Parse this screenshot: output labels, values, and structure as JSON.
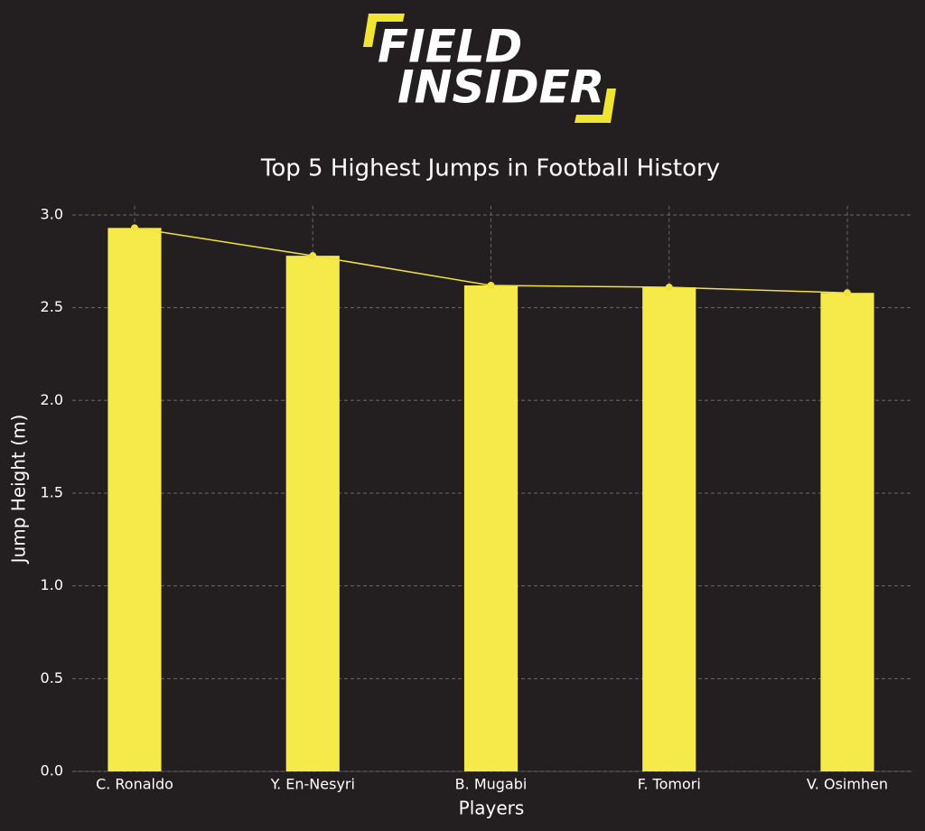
{
  "logo": {
    "lines": [
      "FIELD",
      "INSIDER"
    ]
  },
  "chart_data": {
    "type": "bar",
    "title": "Top 5 Highest Jumps in Football History",
    "x_label": "Players",
    "y_label": "Jump Height (m)",
    "categories": [
      "C. Ronaldo",
      "Y. En-Nesyri",
      "B. Mugabi",
      "F. Tomori",
      "V. Osimhen"
    ],
    "values": [
      2.93,
      2.78,
      2.62,
      2.61,
      2.58
    ],
    "color": "#f5ea4a",
    "line_overlay": true,
    "line_color": "#f2e23c",
    "ylim": [
      0,
      3.05
    ],
    "yticks": [
      {
        "value": 0,
        "label": "0.0"
      },
      {
        "value": 0.5,
        "label": "0.5"
      },
      {
        "value": 1,
        "label": "1.0"
      },
      {
        "value": 1.5,
        "label": "1.5"
      },
      {
        "value": 2,
        "label": "2.0"
      },
      {
        "value": 2.5,
        "label": "2.5"
      },
      {
        "value": 3,
        "label": "3.0"
      }
    ],
    "grid": true
  }
}
